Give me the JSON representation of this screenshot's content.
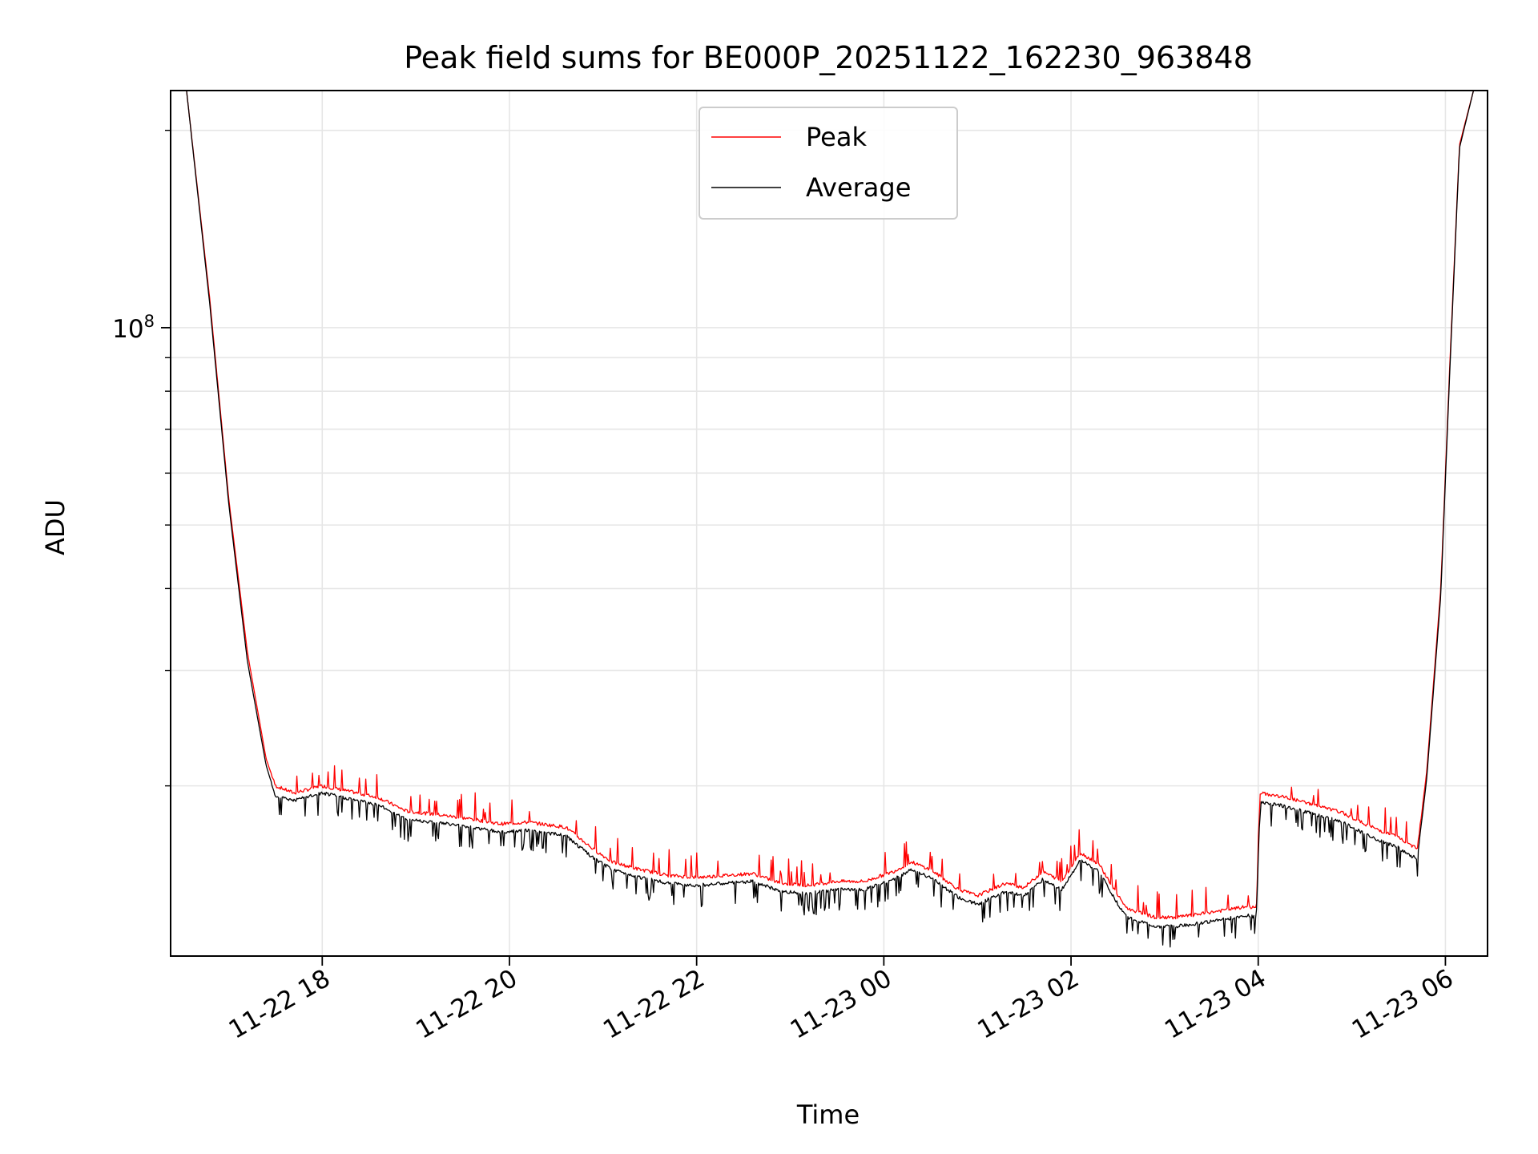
{
  "chart_data": {
    "type": "line",
    "title": "Peak field sums for BE000P_20251122_162230_963848",
    "xlabel": "Time",
    "ylabel": "ADU",
    "yscale": "log",
    "ylim": [
      11000000,
      230000000
    ],
    "xlim_hours": [
      16.38,
      30.45
    ],
    "grid": true,
    "legend_position": "upper center",
    "x_ticks": [
      {
        "label": "11-22 18",
        "hour": 18
      },
      {
        "label": "11-22 20",
        "hour": 20
      },
      {
        "label": "11-22 22",
        "hour": 22
      },
      {
        "label": "11-23 00",
        "hour": 24
      },
      {
        "label": "11-23 02",
        "hour": 26
      },
      {
        "label": "11-23 04",
        "hour": 28
      },
      {
        "label": "11-23 06",
        "hour": 30
      }
    ],
    "y_ticks": [
      {
        "base": "10",
        "exp": "8",
        "value": 100000000
      }
    ],
    "y_minor_ticks": [
      20000000,
      30000000,
      40000000,
      50000000,
      60000000,
      70000000,
      80000000,
      90000000,
      200000000
    ],
    "series": [
      {
        "name": "Peak",
        "color": "#ff0000",
        "x_hours": [
          16.55,
          16.8,
          17.0,
          17.2,
          17.4,
          17.5,
          17.7,
          18.0,
          18.3,
          18.6,
          18.9,
          19.2,
          19.6,
          19.9,
          20.2,
          20.6,
          20.9,
          21.1,
          21.4,
          21.7,
          22.0,
          22.3,
          22.6,
          22.9,
          23.2,
          23.5,
          23.8,
          24.1,
          24.3,
          24.5,
          24.8,
          25.0,
          25.3,
          25.5,
          25.7,
          25.9,
          26.1,
          26.3,
          26.5,
          26.6,
          26.75,
          26.9,
          27.1,
          27.3,
          27.6,
          27.9,
          27.98,
          28.02,
          28.3,
          28.6,
          28.9,
          29.1,
          29.3,
          29.5,
          29.6,
          29.7,
          29.8,
          29.95,
          30.05,
          30.15,
          30.3
        ],
        "values": [
          230000000,
          110000000,
          55000000,
          32000000,
          22000000,
          20000000,
          19500000,
          20000000,
          19600000,
          19200000,
          18300000,
          18100000,
          17800000,
          17500000,
          17600000,
          17300000,
          16000000,
          15300000,
          14900000,
          14600000,
          14500000,
          14600000,
          14700000,
          14200000,
          14100000,
          14300000,
          14300000,
          14800000,
          15300000,
          14900000,
          13900000,
          13600000,
          14200000,
          14000000,
          14800000,
          14300000,
          15800000,
          15200000,
          13600000,
          13000000,
          12800000,
          12600000,
          12600000,
          12700000,
          12900000,
          13100000,
          13000000,
          19500000,
          19200000,
          18700000,
          18200000,
          17600000,
          17100000,
          16700000,
          16300000,
          16100000,
          21000000,
          40000000,
          90000000,
          190000000,
          230000000
        ]
      },
      {
        "name": "Average",
        "color": "#000000",
        "x_hours": [
          16.55,
          16.8,
          17.0,
          17.2,
          17.4,
          17.5,
          17.7,
          18.0,
          18.3,
          18.6,
          18.9,
          19.2,
          19.6,
          19.9,
          20.2,
          20.6,
          20.9,
          21.1,
          21.4,
          21.7,
          22.0,
          22.3,
          22.6,
          22.9,
          23.2,
          23.5,
          23.8,
          24.1,
          24.3,
          24.5,
          24.8,
          25.0,
          25.3,
          25.5,
          25.7,
          25.9,
          26.1,
          26.3,
          26.5,
          26.6,
          26.75,
          26.9,
          27.1,
          27.3,
          27.6,
          27.9,
          27.98,
          28.02,
          28.3,
          28.6,
          28.9,
          29.1,
          29.3,
          29.5,
          29.6,
          29.7,
          29.8,
          29.95,
          30.05,
          30.15,
          30.3
        ],
        "values": [
          230000000,
          108000000,
          54000000,
          31000000,
          21500000,
          19300000,
          19000000,
          19500000,
          19100000,
          18700000,
          17800000,
          17600000,
          17300000,
          17000000,
          17100000,
          16800000,
          15500000,
          14900000,
          14500000,
          14200000,
          14100000,
          14200000,
          14300000,
          13800000,
          13700000,
          13900000,
          13900000,
          14400000,
          14900000,
          14500000,
          13500000,
          13200000,
          13800000,
          13600000,
          14400000,
          13900000,
          15400000,
          14800000,
          13200000,
          12600000,
          12400000,
          12200000,
          12200000,
          12300000,
          12500000,
          12700000,
          12600000,
          18900000,
          18600000,
          18100000,
          17600000,
          17000000,
          16500000,
          16100000,
          15700000,
          15500000,
          20500000,
          39000000,
          88000000,
          188000000,
          230000000
        ]
      }
    ]
  }
}
